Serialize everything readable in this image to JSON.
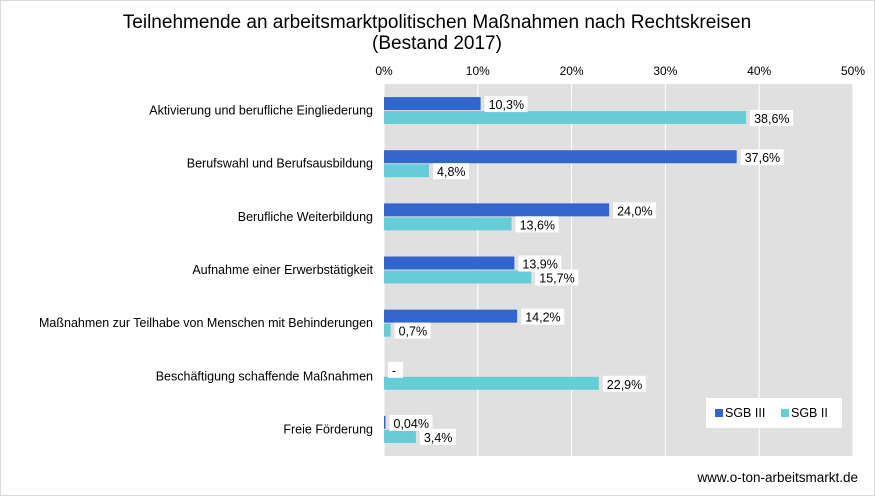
{
  "chart_data": {
    "type": "bar",
    "orientation": "horizontal",
    "title_lines": [
      "Teilnehmende an arbeitsmarktpolitischen Maßnahmen nach Rechtskreisen",
      "(Bestand 2017)"
    ],
    "categories": [
      "Aktivierung und berufliche Eingliederung",
      "Berufswahl und Berufsausbildung",
      "Berufliche Weiterbildung",
      "Aufnahme einer Erwerbstätigkeit",
      "Maßnahmen zur Teilhabe von Menschen mit Behinderungen",
      "Beschäftigung schaffende Maßnahmen",
      "Freie Förderung"
    ],
    "series": [
      {
        "name": "SGB III",
        "color": "#3366cc",
        "values": [
          10.3,
          37.6,
          24.0,
          13.9,
          14.2,
          0,
          0.04
        ],
        "labels": [
          "10,3%",
          "37,6%",
          "24,0%",
          "13,9%",
          "14,2%",
          "-",
          "0,04%"
        ]
      },
      {
        "name": "SGB II",
        "color": "#66ccd6",
        "values": [
          38.6,
          4.8,
          13.6,
          15.7,
          0.7,
          22.9,
          3.4
        ],
        "labels": [
          "38,6%",
          "4,8%",
          "13,6%",
          "15,7%",
          "0,7%",
          "22,9%",
          "3,4%"
        ]
      }
    ],
    "x_ticks": [
      "0%",
      "10%",
      "20%",
      "30%",
      "40%",
      "50%"
    ],
    "xlim": [
      0,
      50
    ],
    "x_axis_position": "top",
    "grid": true,
    "legend_position": "bottom-right",
    "plot_background": "#e0e0e0",
    "source": "www.o-ton-arbeitsmarkt.de"
  }
}
